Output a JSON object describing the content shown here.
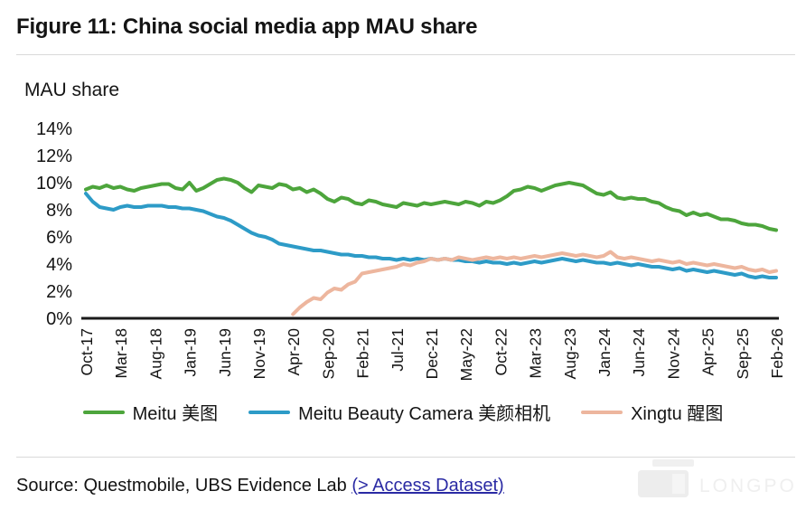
{
  "figure": {
    "title": "Figure 11: China social media app MAU share",
    "axis_title": "MAU share"
  },
  "footer": {
    "source_prefix": "Source: Questmobile, UBS Evidence Lab ",
    "link_label": "(> Access Dataset)",
    "watermark": "LONGPORT"
  },
  "colors": {
    "meitu_green": "#4DA53C",
    "beauty_camera_blue": "#2D9BC7",
    "xingtu_peach": "#EDB69E",
    "axis_black": "#1a1a1a",
    "link_blue": "#2a2aa4",
    "divider_gray": "#d9d9d9",
    "watermark_gray": "#efefef"
  },
  "chart_data": {
    "type": "line",
    "title": "MAU share",
    "xlabel": "",
    "ylabel": "MAU share",
    "ylim": [
      0,
      14
    ],
    "y_tick_labels": [
      "0%",
      "2%",
      "4%",
      "6%",
      "8%",
      "10%",
      "12%",
      "14%"
    ],
    "grid": false,
    "legend_position": "bottom",
    "x_is_monthly": true,
    "x_start": "Oct-17",
    "x_end": "Feb-26",
    "x_tick_every_n_months": 5,
    "x_tick_labels": [
      "Oct-17",
      "Mar-18",
      "Aug-18",
      "Jan-19",
      "Jun-19",
      "Nov-19",
      "Apr-20",
      "Sep-20",
      "Feb-21",
      "Jul-21",
      "Dec-21",
      "May-22",
      "Oct-22",
      "Mar-23",
      "Aug-23",
      "Jan-24",
      "Jun-24",
      "Nov-24",
      "Apr-25",
      "Sep-25",
      "Feb-26"
    ],
    "series": [
      {
        "name": "Meitu 美图",
        "color": "#4DA53C",
        "values": [
          9.5,
          9.7,
          9.6,
          9.8,
          9.6,
          9.7,
          9.5,
          9.4,
          9.6,
          9.7,
          9.8,
          9.9,
          9.9,
          9.6,
          9.5,
          10.0,
          9.4,
          9.6,
          9.9,
          10.2,
          10.3,
          10.2,
          10.0,
          9.6,
          9.3,
          9.8,
          9.7,
          9.6,
          9.9,
          9.8,
          9.5,
          9.6,
          9.3,
          9.5,
          9.2,
          8.8,
          8.6,
          8.9,
          8.8,
          8.5,
          8.4,
          8.7,
          8.6,
          8.4,
          8.3,
          8.2,
          8.5,
          8.4,
          8.3,
          8.5,
          8.4,
          8.5,
          8.6,
          8.5,
          8.4,
          8.6,
          8.5,
          8.3,
          8.6,
          8.5,
          8.7,
          9.0,
          9.4,
          9.5,
          9.7,
          9.6,
          9.4,
          9.6,
          9.8,
          9.9,
          10.0,
          9.9,
          9.8,
          9.5,
          9.2,
          9.1,
          9.3,
          8.9,
          8.8,
          8.9,
          8.8,
          8.8,
          8.6,
          8.5,
          8.2,
          8.0,
          7.9,
          7.6,
          7.8,
          7.6,
          7.7,
          7.5,
          7.3,
          7.3,
          7.2,
          7.0,
          6.9,
          6.9,
          6.8,
          6.6,
          6.5
        ]
      },
      {
        "name": "Meitu Beauty Camera 美颜相机",
        "color": "#2D9BC7",
        "values": [
          9.2,
          8.6,
          8.2,
          8.1,
          8.0,
          8.2,
          8.3,
          8.2,
          8.2,
          8.3,
          8.3,
          8.3,
          8.2,
          8.2,
          8.1,
          8.1,
          8.0,
          7.9,
          7.7,
          7.5,
          7.4,
          7.2,
          6.9,
          6.6,
          6.3,
          6.1,
          6.0,
          5.8,
          5.5,
          5.4,
          5.3,
          5.2,
          5.1,
          5.0,
          5.0,
          4.9,
          4.8,
          4.7,
          4.7,
          4.6,
          4.6,
          4.5,
          4.5,
          4.4,
          4.4,
          4.3,
          4.4,
          4.3,
          4.4,
          4.3,
          4.4,
          4.3,
          4.4,
          4.3,
          4.3,
          4.2,
          4.2,
          4.1,
          4.2,
          4.1,
          4.1,
          4.0,
          4.1,
          4.0,
          4.1,
          4.2,
          4.1,
          4.2,
          4.3,
          4.4,
          4.3,
          4.2,
          4.3,
          4.2,
          4.1,
          4.1,
          4.0,
          4.1,
          4.0,
          3.9,
          4.0,
          3.9,
          3.8,
          3.8,
          3.7,
          3.6,
          3.7,
          3.5,
          3.6,
          3.5,
          3.4,
          3.5,
          3.4,
          3.3,
          3.2,
          3.3,
          3.1,
          3.0,
          3.1,
          3.0,
          3.0
        ]
      },
      {
        "name": "Xingtu 醒图",
        "color": "#EDB69E",
        "values": [
          null,
          null,
          null,
          null,
          null,
          null,
          null,
          null,
          null,
          null,
          null,
          null,
          null,
          null,
          null,
          null,
          null,
          null,
          null,
          null,
          null,
          null,
          null,
          null,
          null,
          null,
          null,
          null,
          null,
          null,
          0.3,
          0.8,
          1.2,
          1.5,
          1.4,
          1.9,
          2.2,
          2.1,
          2.5,
          2.7,
          3.3,
          3.4,
          3.5,
          3.6,
          3.7,
          3.8,
          4.0,
          3.9,
          4.1,
          4.2,
          4.4,
          4.3,
          4.4,
          4.3,
          4.5,
          4.4,
          4.3,
          4.4,
          4.5,
          4.4,
          4.5,
          4.4,
          4.5,
          4.4,
          4.5,
          4.6,
          4.5,
          4.6,
          4.7,
          4.8,
          4.7,
          4.6,
          4.7,
          4.6,
          4.5,
          4.6,
          4.9,
          4.5,
          4.4,
          4.5,
          4.4,
          4.3,
          4.2,
          4.3,
          4.2,
          4.1,
          4.2,
          4.0,
          4.1,
          4.0,
          3.9,
          4.0,
          3.9,
          3.8,
          3.7,
          3.8,
          3.6,
          3.5,
          3.6,
          3.4,
          3.5
        ]
      }
    ]
  }
}
